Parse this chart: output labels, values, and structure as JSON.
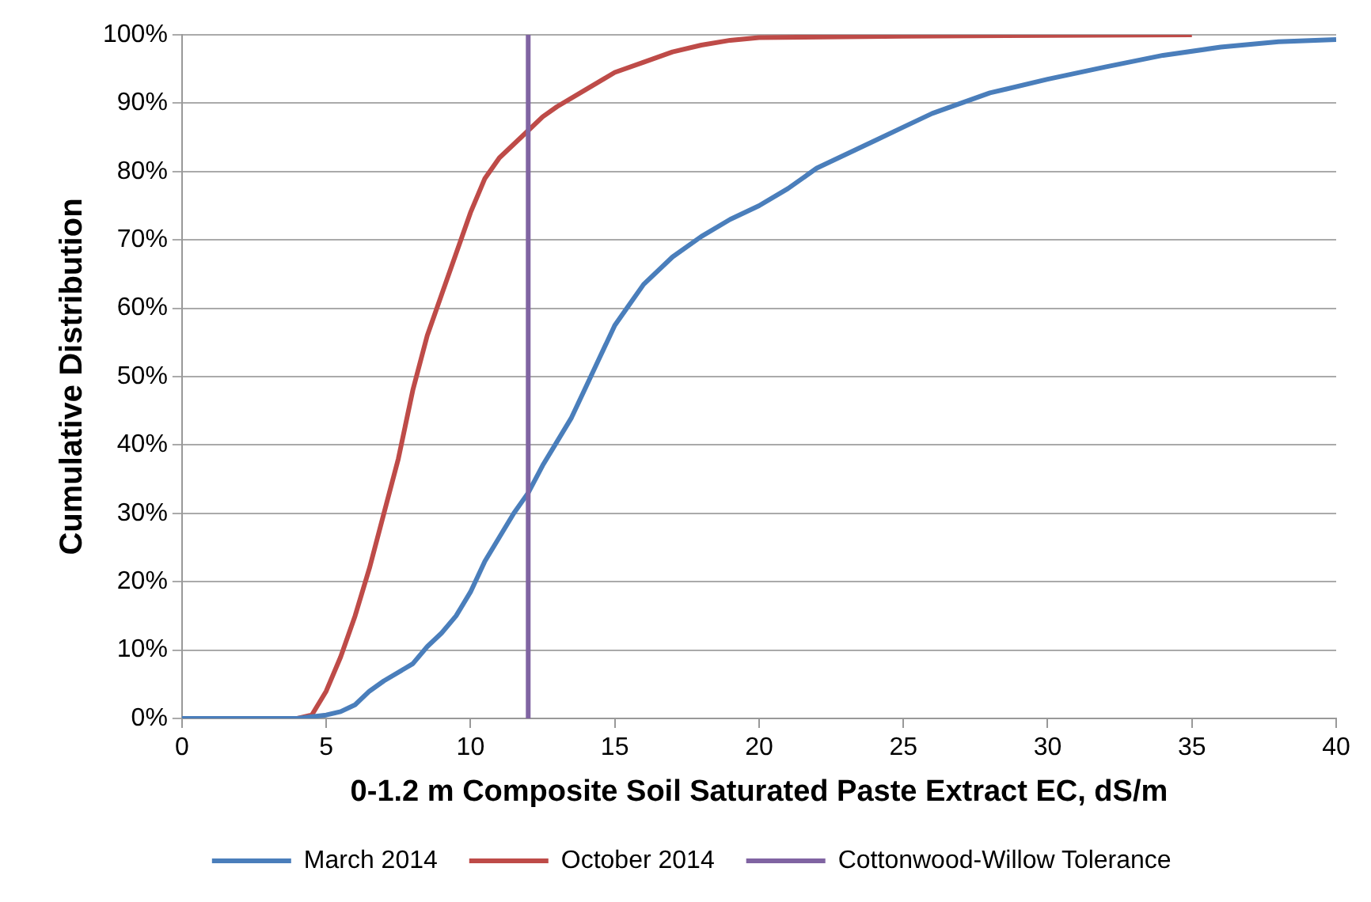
{
  "chart_data": {
    "type": "line",
    "xlabel": "0-1.2 m Composite Soil Saturated Paste Extract EC, dS/m",
    "ylabel": "Cumulative Distribution",
    "xlim": [
      0,
      40
    ],
    "xticks": [
      0,
      5,
      10,
      15,
      20,
      25,
      30,
      35,
      40
    ],
    "ylim": [
      0,
      100
    ],
    "yticks": [
      {
        "value": 0,
        "label": "0%"
      },
      {
        "value": 10,
        "label": "10%"
      },
      {
        "value": 20,
        "label": "20%"
      },
      {
        "value": 30,
        "label": "30%"
      },
      {
        "value": 40,
        "label": "40%"
      },
      {
        "value": 50,
        "label": "50%"
      },
      {
        "value": 60,
        "label": "60%"
      },
      {
        "value": 70,
        "label": "70%"
      },
      {
        "value": 80,
        "label": "80%"
      },
      {
        "value": 90,
        "label": "90%"
      },
      {
        "value": 100,
        "label": "100%"
      }
    ],
    "grid": "y",
    "legend": "bottom",
    "marker": "none",
    "line_style": "solid",
    "series": [
      {
        "name": "March 2014",
        "color": "#4a7ebb",
        "x": [
          0,
          4,
          5,
          5.5,
          6,
          6.5,
          7,
          8,
          8.5,
          9,
          9.5,
          10,
          10.5,
          11,
          11.5,
          12,
          12.5,
          13,
          13.5,
          14,
          14.5,
          15,
          15.5,
          16,
          17,
          18,
          19,
          20,
          21,
          22,
          23,
          24,
          25,
          26,
          27,
          28,
          30,
          32,
          34,
          36,
          38,
          40
        ],
        "values": [
          0,
          0,
          0.5,
          1,
          2,
          4,
          5.5,
          8,
          10.5,
          12.5,
          15,
          18.5,
          23,
          26.5,
          30,
          33,
          37,
          40.5,
          44,
          48.5,
          53,
          57.5,
          60.5,
          63.5,
          67.5,
          70.5,
          73,
          75,
          77.5,
          80.5,
          82.5,
          84.5,
          86.5,
          88.5,
          90,
          91.5,
          93.5,
          95.3,
          97,
          98.2,
          99,
          99.3
        ]
      },
      {
        "name": "October 2014",
        "color": "#be4b48",
        "x": [
          0,
          4,
          4.5,
          5,
          5.5,
          6,
          6.5,
          7,
          7.5,
          8,
          8.5,
          9,
          9.5,
          10,
          10.5,
          11,
          11.5,
          12,
          12.5,
          13,
          14,
          15,
          16,
          17,
          18,
          19,
          20,
          25,
          35
        ],
        "values": [
          0,
          0,
          0.5,
          4,
          9,
          15,
          22,
          30,
          38,
          48,
          56,
          62,
          68,
          74,
          79,
          82,
          84,
          86,
          88,
          89.5,
          92,
          94.5,
          96,
          97.5,
          98.5,
          99.2,
          99.6,
          99.8,
          100
        ]
      }
    ],
    "ref_lines": [
      {
        "axis": "x",
        "value": 12,
        "label": "Cottonwood-Willow Tolerance",
        "color": "#8064a2"
      }
    ]
  }
}
